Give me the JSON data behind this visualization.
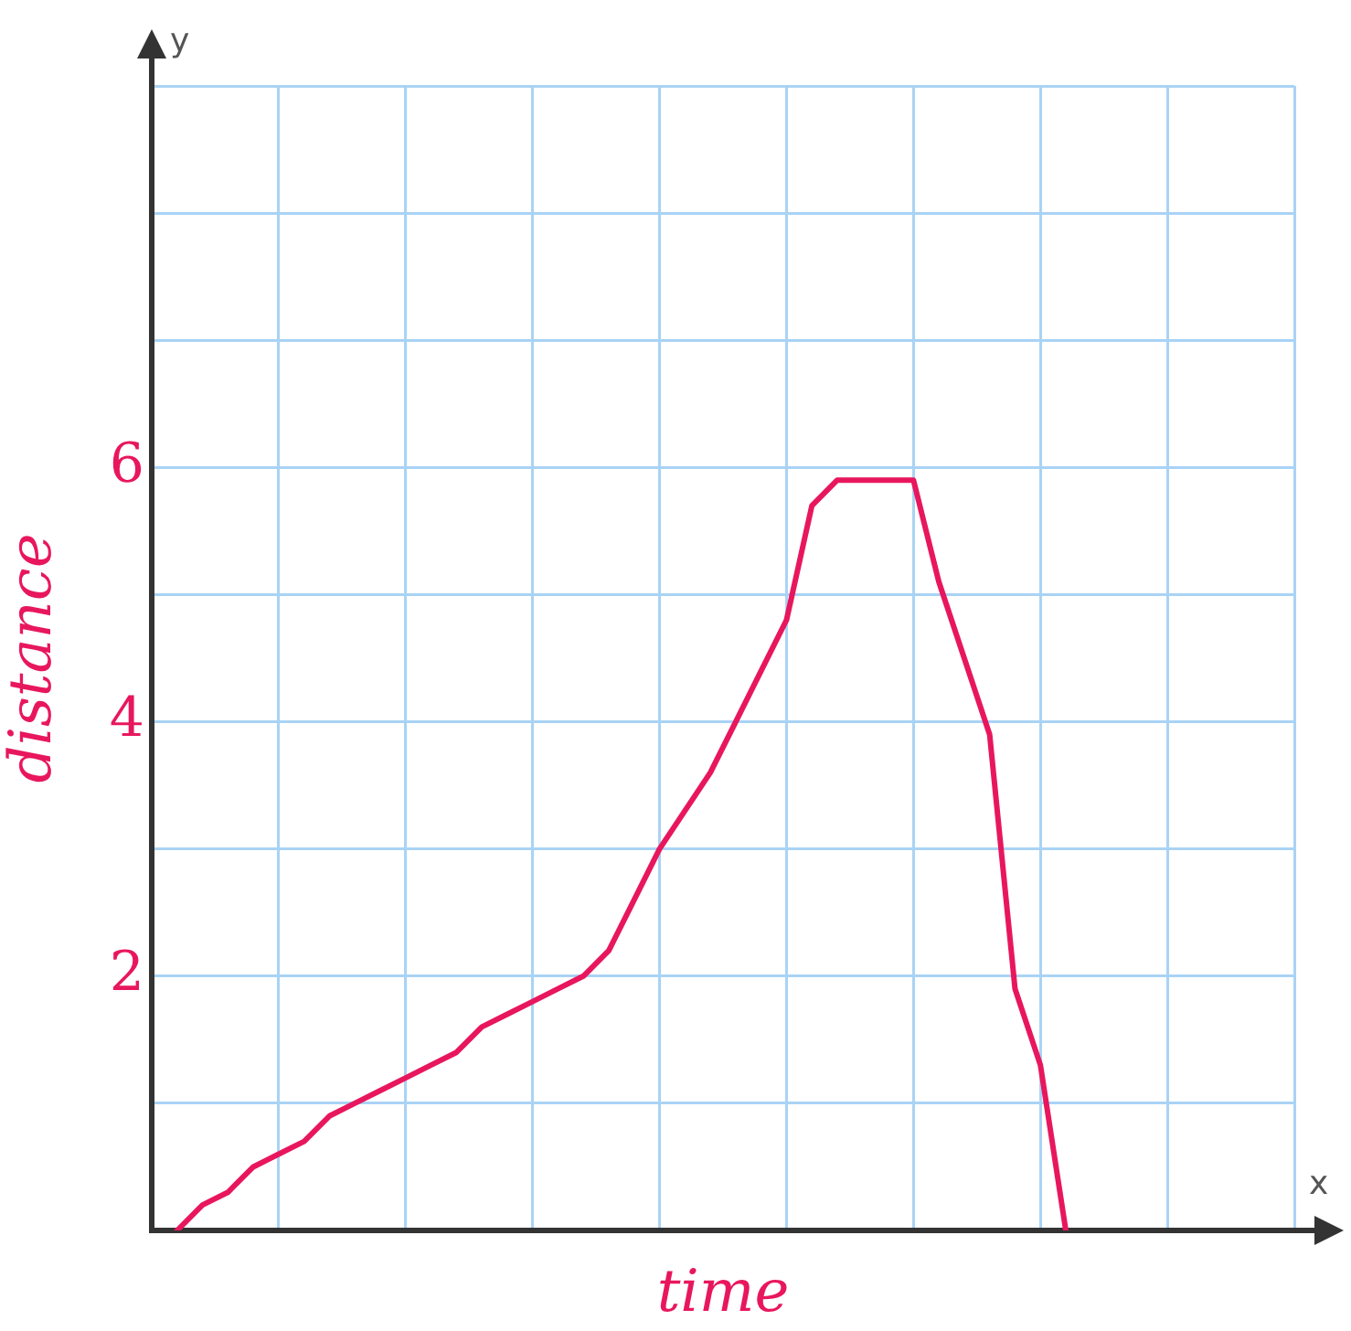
{
  "chart_data": {
    "type": "line",
    "xlabel": "time",
    "ylabel": "distance",
    "annotations": [
      "x",
      "y"
    ],
    "categories": [
      null,
      null,
      null,
      null,
      null,
      null,
      null,
      null,
      null,
      null,
      null,
      null,
      null,
      null,
      null,
      null,
      null,
      null,
      null,
      null,
      null,
      null,
      null,
      null,
      null,
      null,
      null,
      null,
      null,
      null,
      null,
      null,
      null,
      null,
      null,
      null,
      null,
      null,
      null,
      null,
      null,
      null,
      null,
      null,
      null,
      null
    ],
    "ylim": [
      0,
      9
    ],
    "yticks": [
      {
        "value": 0,
        "label": null
      },
      {
        "value": 1,
        "label": null
      },
      2,
      {
        "value": 3,
        "label": null
      },
      4,
      {
        "value": 5,
        "label": null
      },
      6,
      {
        "value": 7,
        "label": null
      },
      {
        "value": 8,
        "label": null
      },
      {
        "value": 9,
        "label": null
      }
    ],
    "tick_labels": "y",
    "grid": true,
    "legend": false,
    "marker": "none",
    "line_style": "solid",
    "series": [
      {
        "color": "#e8175d",
        "values": [
          null,
          0,
          0.2,
          0.3,
          0.5,
          0.6,
          0.7,
          0.9,
          1.0,
          1.1,
          1.2,
          1.3,
          1.4,
          1.6,
          1.7,
          1.8,
          1.9,
          2.0,
          2.2,
          2.6,
          3.0,
          3.3,
          3.6,
          4.0,
          4.4,
          4.8,
          5.7,
          5.9,
          5.9,
          5.9,
          5.9,
          5.1,
          4.5,
          3.9,
          1.9,
          1.3,
          0,
          null,
          null,
          null,
          null,
          null,
          null,
          null,
          null,
          null
        ]
      }
    ]
  }
}
